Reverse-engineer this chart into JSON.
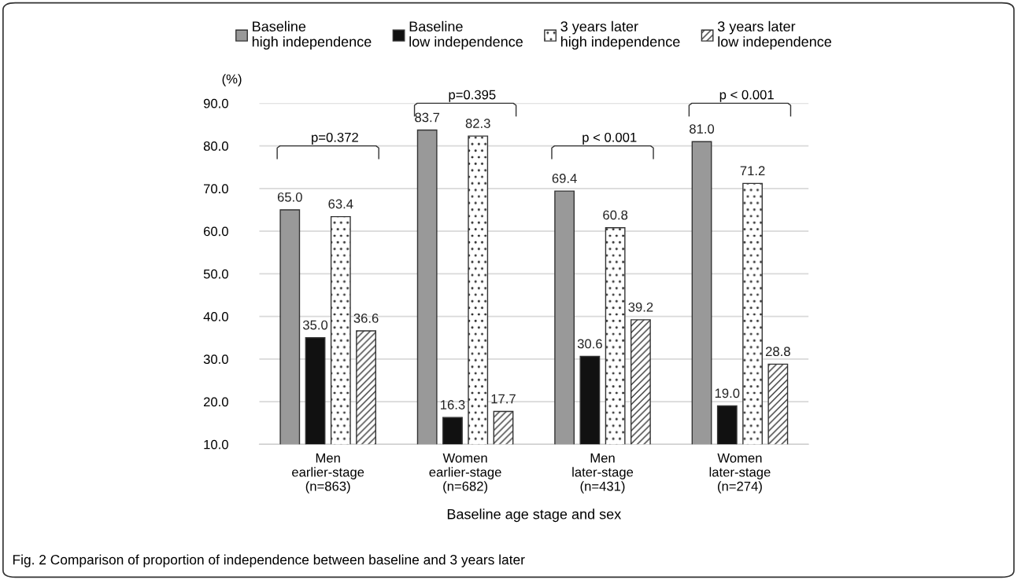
{
  "chart_data": {
    "type": "bar",
    "title": null,
    "xlabel": "Baseline age stage and sex",
    "ylabel": "(%)",
    "categories": [
      "Men\nearlier-stage\n(n=863)",
      "Women\nearlier-stage\n(n=682)",
      "Men\nlater-stage\n(n=431)",
      "Women\nlater-stage\n(n=274)"
    ],
    "series": [
      {
        "name": "Baseline\nhigh independence",
        "color": "#999999",
        "values": [
          65.0,
          83.7,
          69.4,
          81.0
        ],
        "value_labels": [
          "65.0",
          "83.7",
          "69.4",
          "81.0"
        ]
      },
      {
        "name": "Baseline\nlow independence",
        "color": "#111111",
        "values": [
          35.0,
          16.3,
          30.6,
          19.0
        ],
        "value_labels": [
          "35.0",
          "16.3",
          "30.6",
          "19.0"
        ]
      },
      {
        "name": "3 years later\nhigh independence",
        "color": "#ffffff",
        "values": [
          63.4,
          82.3,
          60.8,
          71.2
        ],
        "value_labels": [
          "63.4",
          "82.3",
          "60.8",
          "71.2"
        ]
      },
      {
        "name": "3 years later\nlow independence",
        "color": "#ffffff",
        "values": [
          36.6,
          17.7,
          39.2,
          28.8
        ],
        "value_labels": [
          "36.6",
          "17.7",
          "39.2",
          "28.8"
        ]
      }
    ],
    "ylim": [
      10,
      90
    ],
    "yticks": [
      {
        "value": 10,
        "label": "10.0"
      },
      {
        "value": 20,
        "label": "20.0"
      },
      {
        "value": 30,
        "label": "30.0"
      },
      {
        "value": 40,
        "label": "40.0"
      },
      {
        "value": 50,
        "label": "50.0"
      },
      {
        "value": 60,
        "label": "60.0"
      },
      {
        "value": 70,
        "label": "70.0"
      },
      {
        "value": 80,
        "label": "80.0"
      },
      {
        "value": 90,
        "label": "90.0"
      }
    ],
    "grid": "y",
    "legend": "top",
    "annotations": [
      "p=0.372",
      "p=0.395",
      "p < 0.001",
      "p < 0.001",
      "Fig. 2 Comparison of proportion of independence between baseline and 3 years later"
    ]
  }
}
